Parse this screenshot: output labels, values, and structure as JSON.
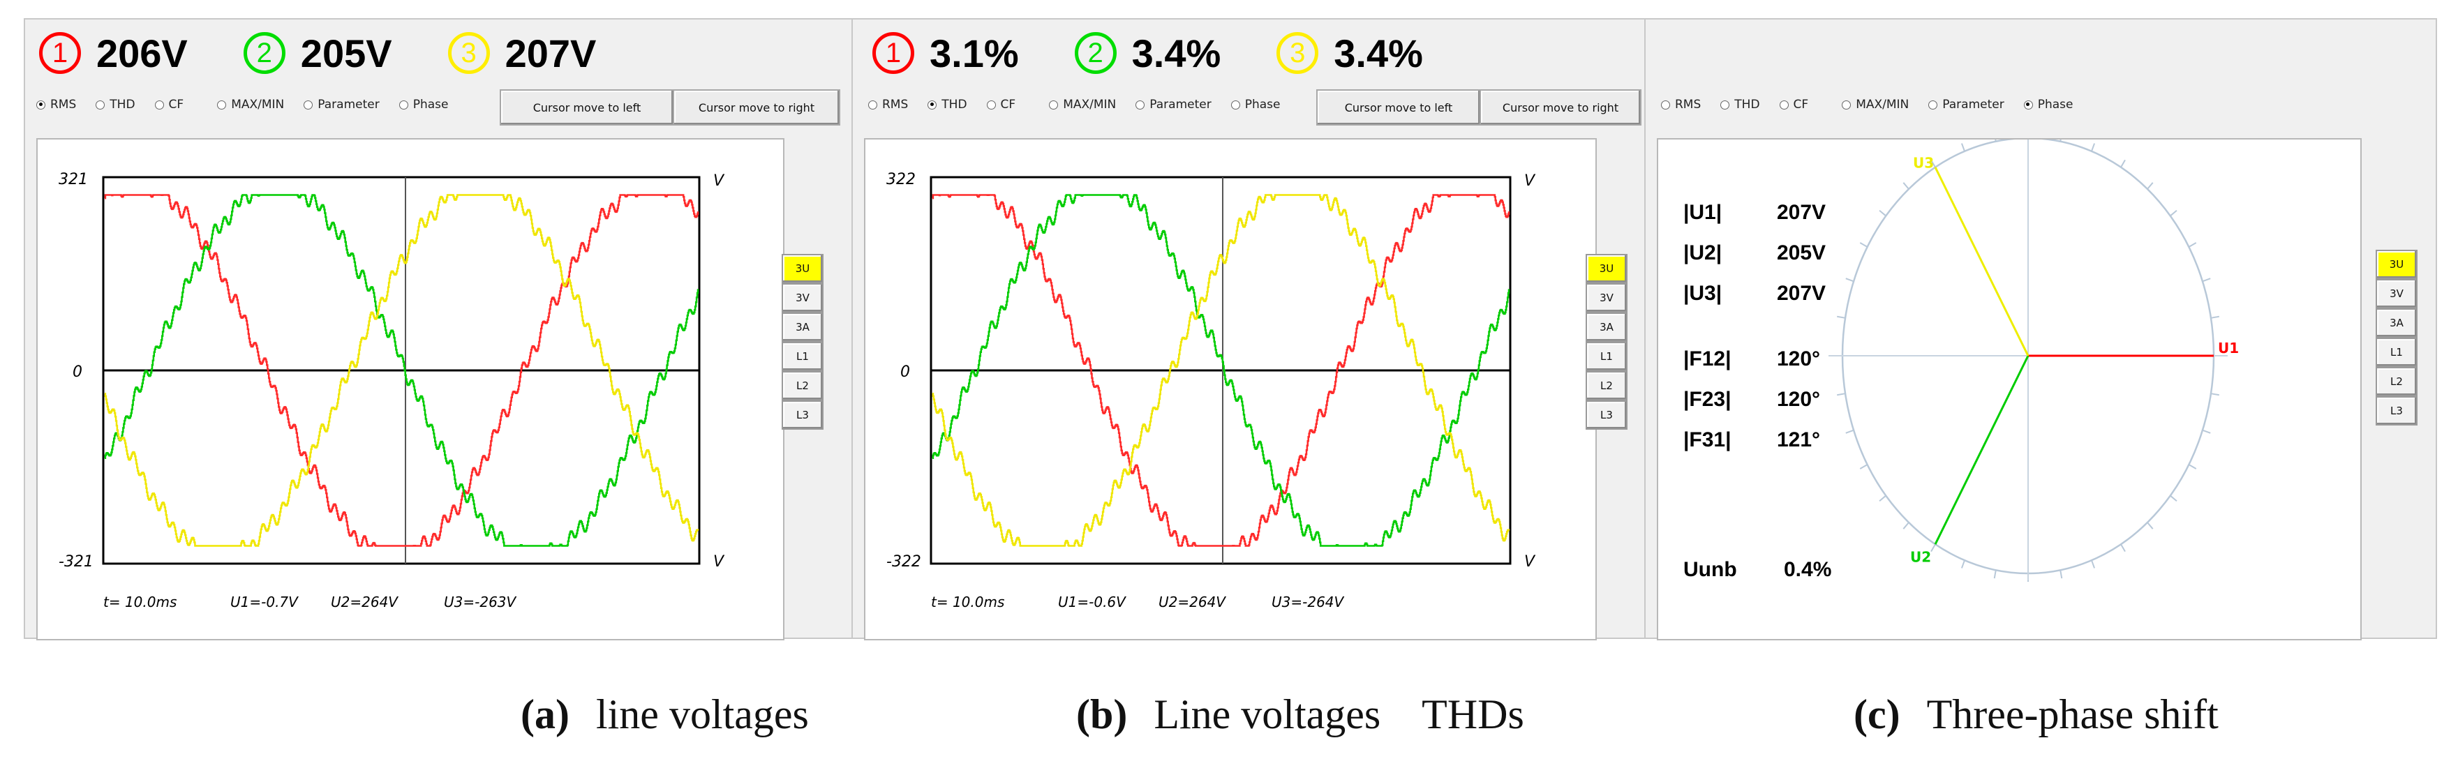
{
  "panels": [
    {
      "readouts": [
        {
          "num": "1",
          "value": "206V",
          "color": "#ff0000"
        },
        {
          "num": "2",
          "value": "205V",
          "color": "#00dd00"
        },
        {
          "num": "3",
          "value": "207V",
          "color": "#ffee00"
        }
      ],
      "modes": [
        "RMS",
        "THD",
        "CF",
        "MAX/MIN",
        "Parameter",
        "Phase"
      ],
      "selected_mode": "RMS",
      "cursor_left_label": "Cursor move to left",
      "cursor_right_label": "Cursor move to right",
      "y_top_label": "321",
      "y_zero_label": "0",
      "y_bottom_label": "-321",
      "unit_label": "V",
      "status": {
        "t": "t= 10.0ms",
        "u1": "U1=-0.7V",
        "u2": "U2=264V",
        "u3": "U3=-263V"
      },
      "caption_tag": "(a)",
      "caption_text": "line voltages"
    },
    {
      "readouts": [
        {
          "num": "1",
          "value": "3.1%",
          "color": "#ff0000"
        },
        {
          "num": "2",
          "value": "3.4%",
          "color": "#00dd00"
        },
        {
          "num": "3",
          "value": "3.4%",
          "color": "#ffee00"
        }
      ],
      "modes": [
        "RMS",
        "THD",
        "CF",
        "MAX/MIN",
        "Parameter",
        "Phase"
      ],
      "selected_mode": "THD",
      "cursor_left_label": "Cursor move to left",
      "cursor_right_label": "Cursor move to right",
      "y_top_label": "322",
      "y_zero_label": "0",
      "y_bottom_label": "-322",
      "unit_label": "V",
      "status": {
        "t": "t= 10.0ms",
        "u1": "U1=-0.6V",
        "u2": "U2=264V",
        "u3": "U3=-264V"
      },
      "caption_tag": "(b)",
      "caption_text": "Line voltages    THDs"
    },
    {
      "modes": [
        "RMS",
        "THD",
        "CF",
        "MAX/MIN",
        "Parameter",
        "Phase"
      ],
      "selected_mode": "Phase",
      "phase_values": [
        {
          "label": "|U1|",
          "value": "207V"
        },
        {
          "label": "|U2|",
          "value": "205V"
        },
        {
          "label": "|U3|",
          "value": "207V"
        },
        {
          "label": "|F12|",
          "value": "120°"
        },
        {
          "label": "|F23|",
          "value": "120°"
        },
        {
          "label": "|F31|",
          "value": "121°"
        }
      ],
      "unbalance_label": "Uunb",
      "unbalance_value": "0.4%",
      "phasors": [
        {
          "name": "U1",
          "angle_deg": 0,
          "color": "#ff0000"
        },
        {
          "name": "U2",
          "angle_deg": 240,
          "color": "#00cc00"
        },
        {
          "name": "U3",
          "angle_deg": 120,
          "color": "#eeee00"
        }
      ],
      "caption_tag": "(c)",
      "caption_text": "Three-phase shift"
    }
  ],
  "side_tabs": [
    "3U",
    "3V",
    "3A",
    "L1",
    "L2",
    "L3"
  ],
  "selected_tab": "3U"
}
